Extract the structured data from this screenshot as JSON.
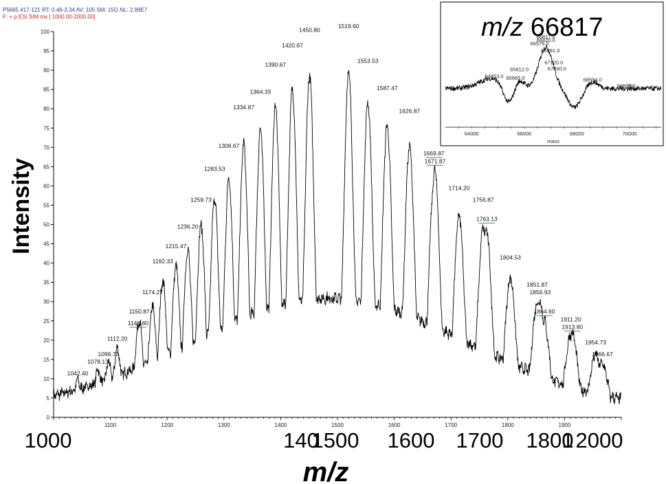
{
  "header": {
    "line1": "P5665 #17-121   RT: 0.46-3.34   AV: 105   SM: 15G   NL: 2.99E7",
    "line2": "F: + p ESI SIM ms [ 1000.00-2000.00]"
  },
  "chart_data": [
    {
      "type": "line",
      "title": "",
      "xlabel": "m/z",
      "ylabel": "Intensity",
      "xlim": [
        1000,
        2000
      ],
      "ylim": [
        0,
        100
      ],
      "small_x_ticks": [
        "1100",
        "1200",
        "1300",
        "1400",
        "1500",
        "1600",
        "1700",
        "1800",
        "1900"
      ],
      "big_x_ticks": [
        "1000",
        "140",
        "1500",
        "1600",
        "1700",
        "1800",
        "1",
        "2000"
      ],
      "y_ticks": [
        "0",
        "5",
        "10",
        "15",
        "20",
        "25",
        "30",
        "35",
        "40",
        "45",
        "50",
        "55",
        "60",
        "65",
        "70",
        "75",
        "80",
        "85",
        "90",
        "95",
        "100"
      ],
      "peaks": [
        {
          "mz": 1042.4,
          "label": "1042.40",
          "intensity": 10
        },
        {
          "mz": 1078.13,
          "label": "1078.13",
          "intensity": 13
        },
        {
          "mz": 1096.73,
          "label": "1096.73",
          "intensity": 15
        },
        {
          "mz": 1112.2,
          "label": "1112.20",
          "intensity": 19
        },
        {
          "mz": 1148.8,
          "label": "1148.80",
          "intensity": 23
        },
        {
          "mz": 1150.87,
          "label": "1150.87",
          "intensity": 26
        },
        {
          "mz": 1174.27,
          "label": "1174.27",
          "intensity": 31
        },
        {
          "mz": 1192.33,
          "label": "1192.33",
          "intensity": 39
        },
        {
          "mz": 1215.47,
          "label": "1215.47",
          "intensity": 43
        },
        {
          "mz": 1236.2,
          "label": "1236.20",
          "intensity": 48
        },
        {
          "mz": 1259.73,
          "label": "1259.73",
          "intensity": 55
        },
        {
          "mz": 1283.53,
          "label": "1283.53",
          "intensity": 63
        },
        {
          "mz": 1308.67,
          "label": "1308.67",
          "intensity": 69
        },
        {
          "mz": 1334.87,
          "label": "1334.87",
          "intensity": 79
        },
        {
          "mz": 1364.33,
          "label": "1364.33",
          "intensity": 83
        },
        {
          "mz": 1390.67,
          "label": "1390.67",
          "intensity": 90
        },
        {
          "mz": 1420.67,
          "label": "1420.67",
          "intensity": 95
        },
        {
          "mz": 1450.8,
          "label": "1450.80",
          "intensity": 99
        },
        {
          "mz": 1519.6,
          "label": "1519.60",
          "intensity": 100
        },
        {
          "mz": 1553.53,
          "label": "1553.53",
          "intensity": 91
        },
        {
          "mz": 1587.47,
          "label": "1587.47",
          "intensity": 84
        },
        {
          "mz": 1626.87,
          "label": "1626.87",
          "intensity": 78
        },
        {
          "mz": 1669.87,
          "label": "1669.87",
          "intensity": 67
        },
        {
          "mz": 1671.87,
          "label": "1671.87",
          "intensity": 65
        },
        {
          "mz": 1714.2,
          "label": "1714.20",
          "intensity": 58
        },
        {
          "mz": 1756.87,
          "label": "1756.87",
          "intensity": 55
        },
        {
          "mz": 1763.13,
          "label": "1763.13",
          "intensity": 50
        },
        {
          "mz": 1804.53,
          "label": "1804.53",
          "intensity": 40
        },
        {
          "mz": 1851.87,
          "label": "1851.87",
          "intensity": 33
        },
        {
          "mz": 1856.93,
          "label": "1856.93",
          "intensity": 31
        },
        {
          "mz": 1864.6,
          "label": "1864.60",
          "intensity": 26
        },
        {
          "mz": 1911.2,
          "label": "1911.20",
          "intensity": 24
        },
        {
          "mz": 1913.8,
          "label": "1913.80",
          "intensity": 22
        },
        {
          "mz": 1954.73,
          "label": "1954.73",
          "intensity": 18
        },
        {
          "mz": 1966.67,
          "label": "1966.67",
          "intensity": 15
        }
      ]
    },
    {
      "type": "line",
      "title": "m/z 66817",
      "title_italic": "m/z",
      "title_rest": "66817",
      "xlabel": "mass",
      "xlim": [
        63000,
        71200
      ],
      "x_ticks": [
        "64000",
        "66000",
        "68000",
        "70000"
      ],
      "peaks": [
        {
          "mass": 64853.0,
          "label": "64853.0",
          "level": 0.54
        },
        {
          "mass": 65665.0,
          "label": "65665.0",
          "level": 0.52
        },
        {
          "mass": 65812.0,
          "label": "65812.0",
          "level": 0.62
        },
        {
          "mass": 66579.0,
          "label": "66579.0",
          "level": 0.92
        },
        {
          "mass": 66817.0,
          "label": "66817.0",
          "level": 1.0
        },
        {
          "mass": 66820.0,
          "label": "66820.0",
          "level": 0.96
        },
        {
          "mass": 66991.0,
          "label": "66991.0",
          "level": 0.84
        },
        {
          "mass": 67120.0,
          "label": "67120.0",
          "level": 0.7
        },
        {
          "mass": 67240.0,
          "label": "67240.0",
          "level": 0.63
        },
        {
          "mass": 68594.0,
          "label": "68594.0",
          "level": 0.5
        },
        {
          "mass": 69869.0,
          "label": "69869.0",
          "level": 0.43
        },
        {
          "mass": 70000,
          "label": "70",
          "level": 0.43
        }
      ]
    }
  ]
}
